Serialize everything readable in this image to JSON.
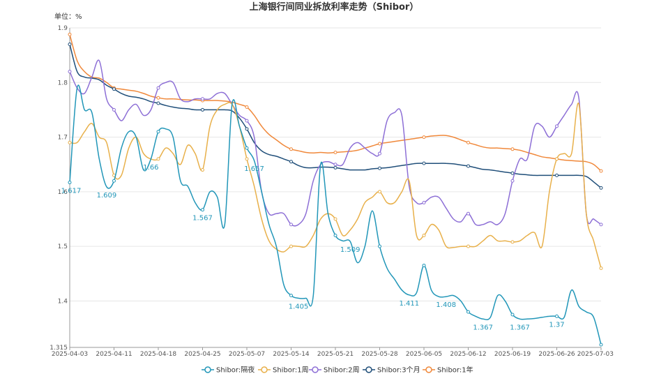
{
  "chart_data": {
    "type": "line",
    "title": "上海银行间同业拆放利率走势（Shibor）",
    "unit_label": "单位：%",
    "ylim": [
      1.315,
      1.9
    ],
    "y_ticks": [
      "1.315",
      "1.4",
      "1.5",
      "1.6",
      "1.7",
      "1.8",
      "1.9"
    ],
    "x_tick_labels": [
      "2025-04-03",
      "2025-04-11",
      "2025-04-18",
      "2025-04-25",
      "2025-05-07",
      "2025-05-14",
      "2025-05-21",
      "2025-05-28",
      "2025-06-05",
      "2025-06-12",
      "2025-06-19",
      "2025-06-26",
      "2025-07-03"
    ],
    "grid": true,
    "legend_position": "bottom",
    "series": [
      {
        "name": "Shibor:隔夜",
        "color": "#2196b8",
        "values": [
          1.617,
          1.79,
          1.75,
          1.745,
          1.66,
          1.609,
          1.62,
          1.68,
          1.71,
          1.7,
          1.64,
          1.66,
          1.71,
          1.715,
          1.7,
          1.62,
          1.61,
          1.58,
          1.567,
          1.6,
          1.59,
          1.54,
          1.76,
          1.72,
          1.68,
          1.657,
          1.6,
          1.54,
          1.5,
          1.43,
          1.41,
          1.405,
          1.405,
          1.41,
          1.65,
          1.56,
          1.52,
          1.51,
          1.509,
          1.47,
          1.5,
          1.565,
          1.5,
          1.46,
          1.44,
          1.42,
          1.411,
          1.415,
          1.465,
          1.42,
          1.408,
          1.408,
          1.41,
          1.4,
          1.38,
          1.372,
          1.367,
          1.37,
          1.41,
          1.4,
          1.375,
          1.367,
          1.367,
          1.368,
          1.37,
          1.372,
          1.372,
          1.37,
          1.42,
          1.39,
          1.38,
          1.37,
          1.32
        ]
      },
      {
        "name": "Shibor:1周",
        "color": "#e8b04a",
        "values": [
          1.69,
          1.69,
          1.71,
          1.725,
          1.7,
          1.69,
          1.63,
          1.63,
          1.68,
          1.7,
          1.67,
          1.66,
          1.66,
          1.68,
          1.67,
          1.65,
          1.685,
          1.67,
          1.64,
          1.72,
          1.75,
          1.76,
          1.76,
          1.72,
          1.66,
          1.61,
          1.55,
          1.51,
          1.495,
          1.49,
          1.5,
          1.5,
          1.5,
          1.52,
          1.55,
          1.56,
          1.55,
          1.52,
          1.53,
          1.55,
          1.58,
          1.59,
          1.6,
          1.58,
          1.58,
          1.6,
          1.62,
          1.52,
          1.52,
          1.54,
          1.53,
          1.5,
          1.498,
          1.5,
          1.5,
          1.5,
          1.51,
          1.52,
          1.51,
          1.51,
          1.508,
          1.51,
          1.52,
          1.525,
          1.5,
          1.6,
          1.66,
          1.67,
          1.67,
          1.76,
          1.56,
          1.51,
          1.46
        ]
      },
      {
        "name": "Shibor:2周",
        "color": "#8d6fd6",
        "values": [
          1.82,
          1.79,
          1.78,
          1.81,
          1.84,
          1.77,
          1.75,
          1.73,
          1.75,
          1.76,
          1.74,
          1.75,
          1.79,
          1.8,
          1.8,
          1.77,
          1.765,
          1.77,
          1.77,
          1.77,
          1.78,
          1.78,
          1.76,
          1.74,
          1.73,
          1.7,
          1.6,
          1.56,
          1.56,
          1.56,
          1.54,
          1.54,
          1.56,
          1.62,
          1.65,
          1.655,
          1.65,
          1.65,
          1.68,
          1.69,
          1.68,
          1.67,
          1.67,
          1.73,
          1.745,
          1.74,
          1.61,
          1.58,
          1.58,
          1.59,
          1.59,
          1.57,
          1.55,
          1.545,
          1.56,
          1.54,
          1.54,
          1.545,
          1.54,
          1.56,
          1.62,
          1.66,
          1.66,
          1.72,
          1.72,
          1.7,
          1.72,
          1.74,
          1.76,
          1.77,
          1.56,
          1.55,
          1.54
        ]
      },
      {
        "name": "Shibor:3个月",
        "color": "#1f4e79",
        "values": [
          1.87,
          1.82,
          1.81,
          1.808,
          1.805,
          1.795,
          1.788,
          1.78,
          1.775,
          1.773,
          1.77,
          1.765,
          1.762,
          1.758,
          1.755,
          1.753,
          1.752,
          1.75,
          1.75,
          1.75,
          1.75,
          1.75,
          1.748,
          1.735,
          1.715,
          1.69,
          1.675,
          1.668,
          1.665,
          1.66,
          1.655,
          1.648,
          1.644,
          1.644,
          1.645,
          1.645,
          1.644,
          1.642,
          1.64,
          1.64,
          1.64,
          1.642,
          1.643,
          1.644,
          1.646,
          1.648,
          1.65,
          1.652,
          1.652,
          1.652,
          1.652,
          1.652,
          1.651,
          1.649,
          1.647,
          1.644,
          1.641,
          1.64,
          1.638,
          1.636,
          1.634,
          1.632,
          1.631,
          1.63,
          1.63,
          1.63,
          1.63,
          1.63,
          1.63,
          1.63,
          1.628,
          1.618,
          1.607
        ]
      },
      {
        "name": "Shibor:1年",
        "color": "#f0883a",
        "values": [
          1.888,
          1.84,
          1.82,
          1.81,
          1.808,
          1.8,
          1.79,
          1.788,
          1.786,
          1.784,
          1.78,
          1.775,
          1.772,
          1.77,
          1.77,
          1.769,
          1.768,
          1.768,
          1.767,
          1.767,
          1.767,
          1.766,
          1.764,
          1.76,
          1.755,
          1.74,
          1.72,
          1.705,
          1.695,
          1.685,
          1.678,
          1.675,
          1.672,
          1.671,
          1.672,
          1.671,
          1.672,
          1.673,
          1.674,
          1.676,
          1.68,
          1.684,
          1.688,
          1.69,
          1.692,
          1.694,
          1.696,
          1.698,
          1.7,
          1.702,
          1.703,
          1.703,
          1.7,
          1.695,
          1.69,
          1.686,
          1.682,
          1.68,
          1.68,
          1.679,
          1.678,
          1.676,
          1.672,
          1.668,
          1.664,
          1.662,
          1.66,
          1.658,
          1.657,
          1.656,
          1.655,
          1.65,
          1.638
        ]
      }
    ],
    "data_labels": [
      {
        "series": "Shibor:隔夜",
        "index": 0,
        "text": "1.617"
      },
      {
        "series": "Shibor:隔夜",
        "index": 5,
        "text": "1.609"
      },
      {
        "series": "Shibor:隔夜",
        "index": 11,
        "text": "1.66"
      },
      {
        "series": "Shibor:隔夜",
        "index": 18,
        "text": "1.567"
      },
      {
        "series": "Shibor:隔夜",
        "index": 25,
        "text": "1.657"
      },
      {
        "series": "Shibor:隔夜",
        "index": 31,
        "text": "1.405"
      },
      {
        "series": "Shibor:隔夜",
        "index": 38,
        "text": "1.509"
      },
      {
        "series": "Shibor:隔夜",
        "index": 46,
        "text": "1.411"
      },
      {
        "series": "Shibor:隔夜",
        "index": 51,
        "text": "1.408"
      },
      {
        "series": "Shibor:隔夜",
        "index": 56,
        "text": "1.367"
      },
      {
        "series": "Shibor:隔夜",
        "index": 61,
        "text": "1.367"
      },
      {
        "series": "Shibor:隔夜",
        "index": 66,
        "text": "1.37"
      }
    ]
  }
}
